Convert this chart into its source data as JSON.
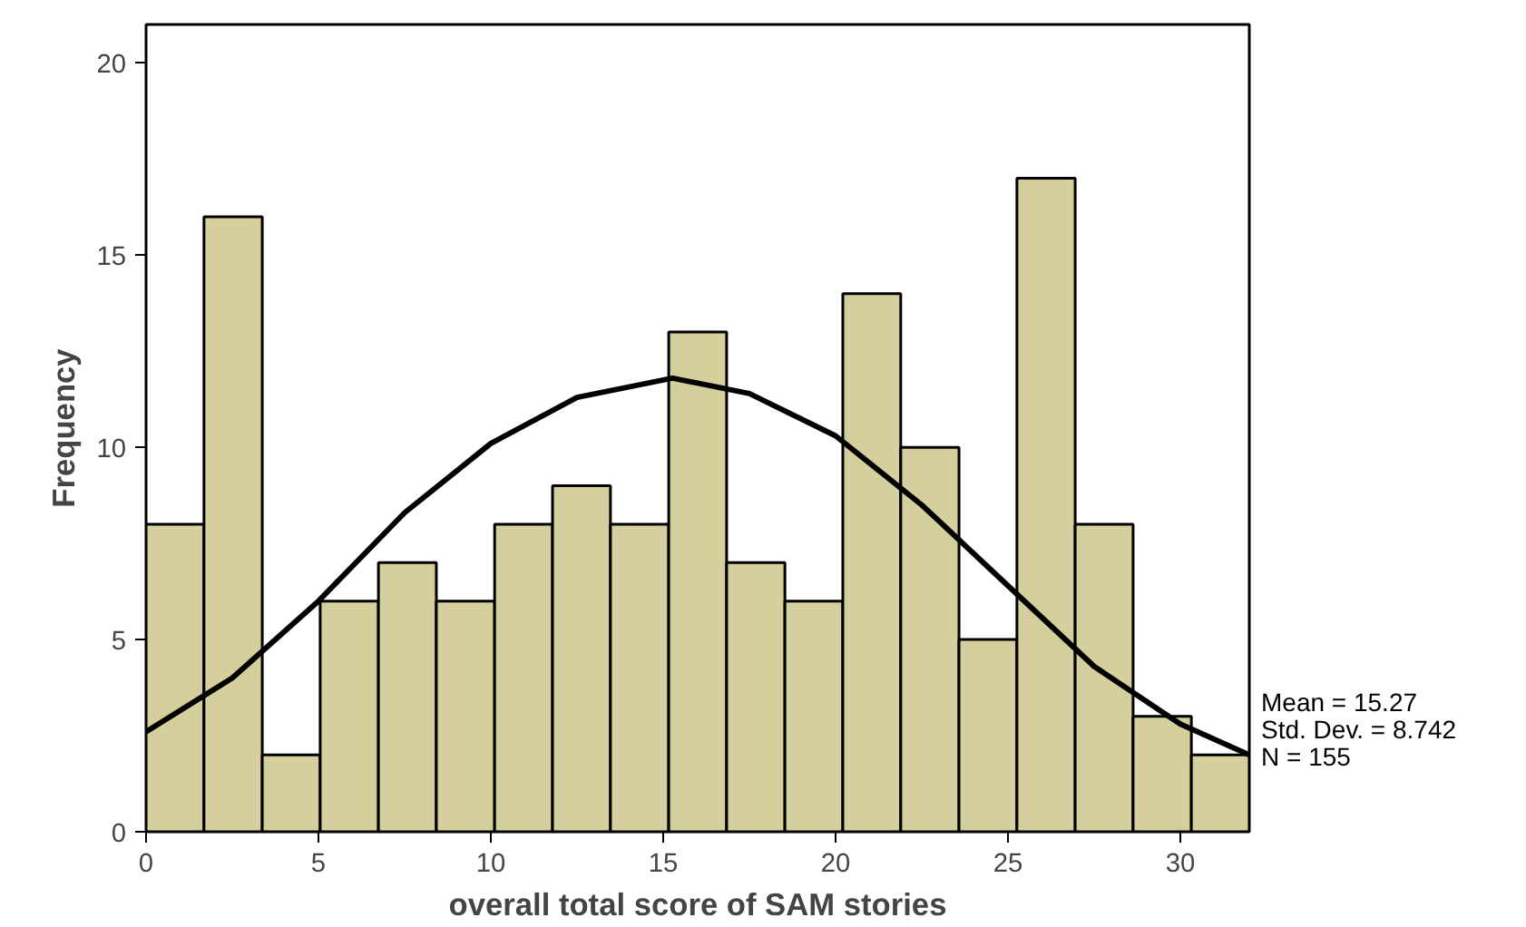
{
  "chart_data": {
    "type": "histogram",
    "xlabel": "overall total score of SAM stories",
    "ylabel": "Frequency",
    "bins": [
      0,
      1.68,
      3.37,
      5.05,
      6.74,
      8.42,
      10.11,
      11.79,
      13.47,
      15.16,
      16.84,
      18.53,
      20.21,
      21.89,
      23.58,
      25.26,
      26.95,
      28.63,
      30.32,
      32.0
    ],
    "values": [
      8,
      16,
      2,
      6,
      7,
      6,
      8,
      9,
      8,
      13,
      7,
      6,
      14,
      10,
      5,
      17,
      8,
      3,
      2
    ],
    "color": "#d4cf9c",
    "series": [
      {
        "type": "line",
        "color": "#000000",
        "x": [
          0,
          2.5,
          5,
          7.5,
          10,
          12.5,
          15.27,
          17.5,
          20,
          22.5,
          25,
          27.5,
          30,
          32
        ],
        "values": [
          2.6,
          4.0,
          6.0,
          8.3,
          10.1,
          11.3,
          11.8,
          11.4,
          10.3,
          8.5,
          6.4,
          4.3,
          2.8,
          2.0
        ]
      }
    ],
    "xlim": [
      0,
      32
    ],
    "xticks": [
      0,
      5,
      10,
      15,
      20,
      25,
      30
    ],
    "ylim": [
      0,
      21
    ],
    "yticks": [
      0,
      5,
      10,
      15,
      20
    ],
    "annotations": [
      "Mean = 15.27",
      "Std. Dev. = 8.742",
      "N = 155"
    ]
  }
}
